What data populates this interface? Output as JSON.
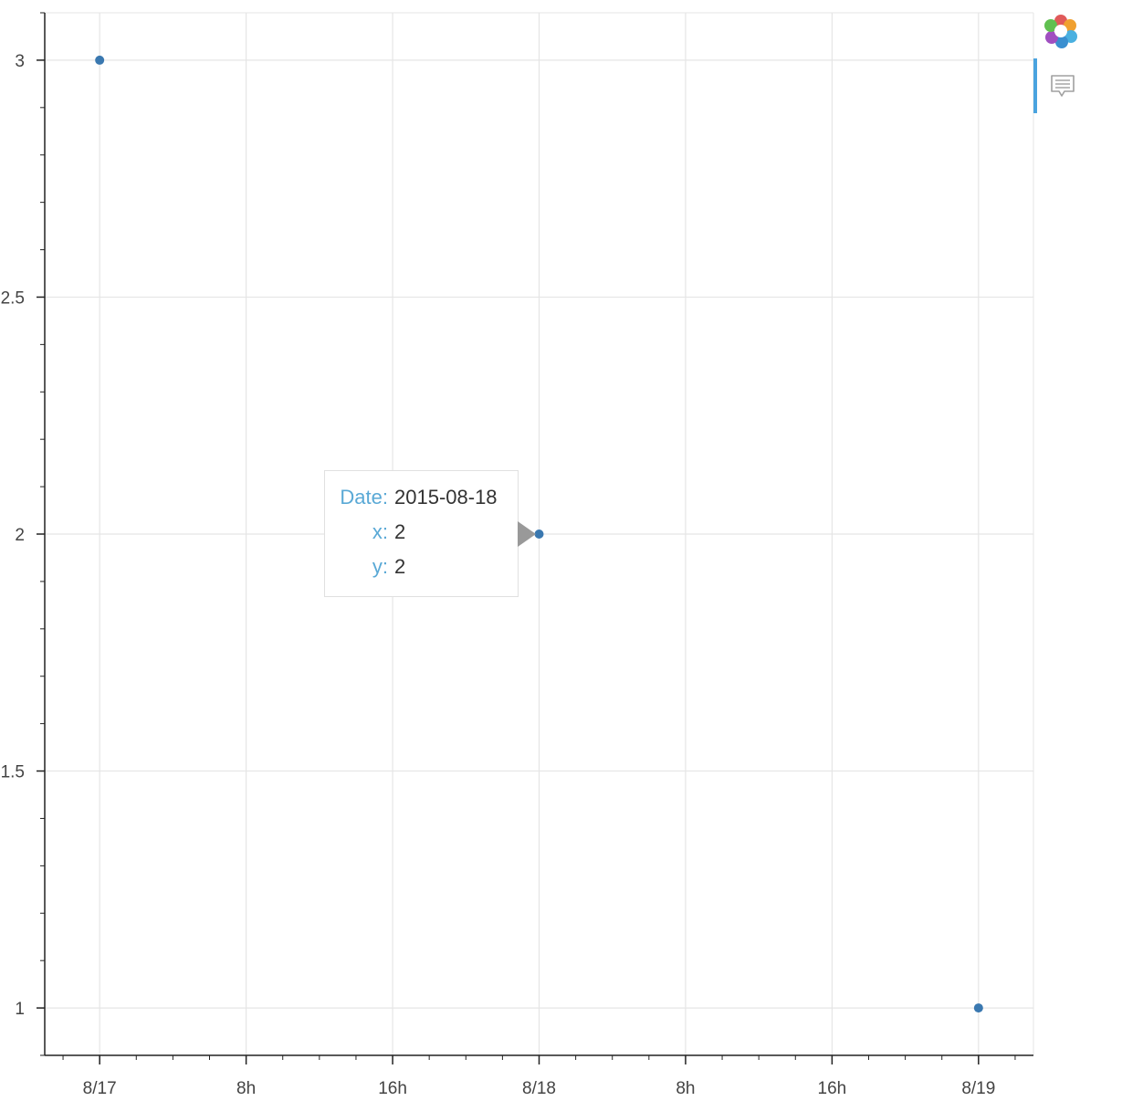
{
  "chart_data": {
    "type": "scatter",
    "title": "",
    "xlabel": "",
    "ylabel": "",
    "x_range": [
      "2015-08-16T21:00",
      "2015-08-19T03:00"
    ],
    "ylim": [
      0.9,
      3.1
    ],
    "x_ticks": [
      {
        "at": "2015-08-17T00:00",
        "label": "8/17"
      },
      {
        "at": "2015-08-17T08:00",
        "label": "8h"
      },
      {
        "at": "2015-08-17T16:00",
        "label": "16h"
      },
      {
        "at": "2015-08-18T00:00",
        "label": "8/18"
      },
      {
        "at": "2015-08-18T08:00",
        "label": "8h"
      },
      {
        "at": "2015-08-18T16:00",
        "label": "16h"
      },
      {
        "at": "2015-08-19T00:00",
        "label": "8/19"
      }
    ],
    "y_ticks": [
      {
        "at": 3,
        "label": "3"
      },
      {
        "at": 2.5,
        "label": "2.5"
      },
      {
        "at": 2,
        "label": "2"
      },
      {
        "at": 1.5,
        "label": "1.5"
      },
      {
        "at": 1,
        "label": "1"
      }
    ],
    "y_minor_step": 0.1,
    "grid": true,
    "series": [
      {
        "color": "#3a78b0",
        "points": [
          {
            "x": "2015-08-17",
            "y": 3
          },
          {
            "x": "2015-08-18",
            "y": 2
          },
          {
            "x": "2015-08-19",
            "y": 1
          }
        ]
      }
    ]
  },
  "tooltip": {
    "rows": [
      {
        "key": "Date:",
        "value": "2015-08-18"
      },
      {
        "key": "x:",
        "value": "2"
      },
      {
        "key": "y:",
        "value": "2"
      }
    ]
  },
  "toolbar": {
    "logo_icon": "bokeh-logo-icon",
    "tools": [
      {
        "icon": "hover-tooltip-icon",
        "active": true
      }
    ],
    "active_color": "#4aa3df"
  }
}
